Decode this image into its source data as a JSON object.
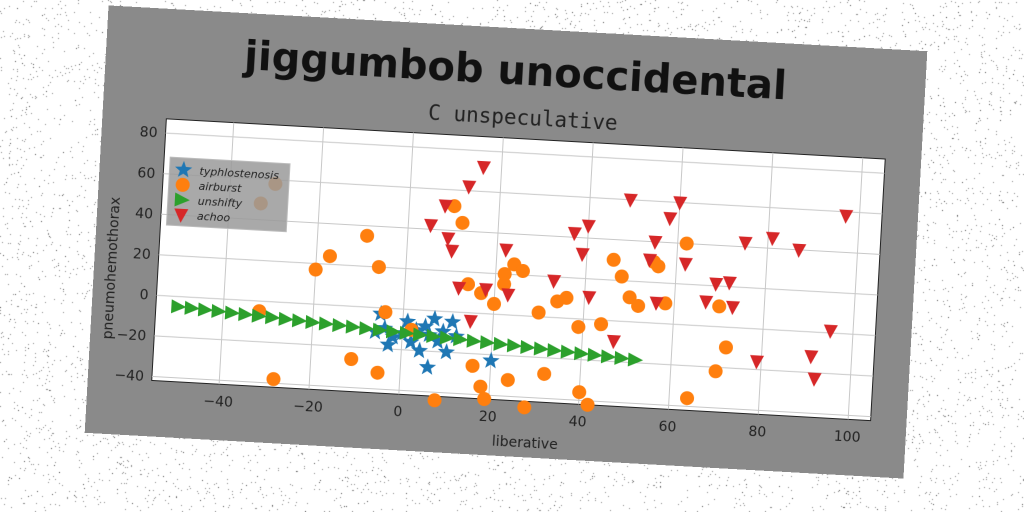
{
  "chart_data": {
    "type": "scatter",
    "title": "jiggumbob unoccidental",
    "subtitle": "C unspeculative",
    "xlabel": "liberative",
    "ylabel": "pneumohemothorax",
    "xlim": [
      -55,
      105
    ],
    "ylim": [
      -42,
      87
    ],
    "xticks": [
      -40,
      -20,
      0,
      20,
      40,
      60,
      80,
      100
    ],
    "yticks": [
      -40,
      -20,
      0,
      20,
      40,
      60,
      80
    ],
    "grid": true,
    "legend_position": "upper-left",
    "series": [
      {
        "name": "typhlostenosis",
        "marker": "star",
        "color": "#1f77b4",
        "points": [
          [
            -5,
            -3
          ],
          [
            -4,
            -10
          ],
          [
            -2,
            -14
          ],
          [
            0,
            -12
          ],
          [
            2,
            -16
          ],
          [
            3,
            -10
          ],
          [
            5,
            -8
          ],
          [
            6,
            -12
          ],
          [
            8,
            -15
          ],
          [
            10,
            -20
          ],
          [
            9,
            -10
          ],
          [
            11,
            -5
          ],
          [
            6,
            -28
          ],
          [
            20,
            -23
          ],
          [
            -3,
            -18
          ],
          [
            1,
            -6
          ],
          [
            4,
            -20
          ],
          [
            7,
            -4
          ],
          [
            -6,
            -12
          ],
          [
            12,
            -12
          ]
        ]
      },
      {
        "name": "airburst",
        "marker": "circle",
        "color": "#ff7f0e",
        "points": [
          [
            -33,
            48
          ],
          [
            -30,
            58
          ],
          [
            -28,
            -38
          ],
          [
            -32,
            -5
          ],
          [
            -20,
            17
          ],
          [
            -17,
            24
          ],
          [
            -9,
            35
          ],
          [
            -6,
            20
          ],
          [
            -11,
            -26
          ],
          [
            -5,
            -32
          ],
          [
            -4,
            -2
          ],
          [
            2,
            -10
          ],
          [
            8,
            -44
          ],
          [
            10,
            52
          ],
          [
            12,
            44
          ],
          [
            14,
            14
          ],
          [
            17,
            10
          ],
          [
            20,
            5
          ],
          [
            22,
            15
          ],
          [
            24,
            25
          ],
          [
            26,
            22
          ],
          [
            16,
            -26
          ],
          [
            18,
            -36
          ],
          [
            19,
            -42
          ],
          [
            24,
            -32
          ],
          [
            28,
            -45
          ],
          [
            32,
            -28
          ],
          [
            34,
            8
          ],
          [
            36,
            10
          ],
          [
            39,
            -4
          ],
          [
            40,
            -36
          ],
          [
            42,
            -42
          ],
          [
            44,
            -2
          ],
          [
            46,
            30
          ],
          [
            50,
            12
          ],
          [
            52,
            8
          ],
          [
            55,
            30
          ],
          [
            56,
            28
          ],
          [
            58,
            10
          ],
          [
            62,
            40
          ],
          [
            64,
            -36
          ],
          [
            70,
            10
          ],
          [
            70,
            -22
          ],
          [
            72,
            -10
          ],
          [
            22,
            20
          ],
          [
            30,
            2
          ],
          [
            48,
            22
          ]
        ]
      },
      {
        "name": "unshifty",
        "marker": "triangle-right",
        "color": "#2ca02c",
        "points": [
          [
            -50,
            -5
          ],
          [
            -47,
            -5.4
          ],
          [
            -44,
            -5.8
          ],
          [
            -41,
            -6.2
          ],
          [
            -38,
            -6.6
          ],
          [
            -35,
            -7
          ],
          [
            -32,
            -7.4
          ],
          [
            -29,
            -7.8
          ],
          [
            -26,
            -8.2
          ],
          [
            -23,
            -8.6
          ],
          [
            -20,
            -9
          ],
          [
            -17,
            -9.4
          ],
          [
            -14,
            -9.8
          ],
          [
            -11,
            -10.2
          ],
          [
            -8,
            -10.6
          ],
          [
            -5,
            -11
          ],
          [
            -2,
            -11.4
          ],
          [
            1,
            -11.8
          ],
          [
            4,
            -12.2
          ],
          [
            7,
            -12.6
          ],
          [
            10,
            -13
          ],
          [
            13,
            -13.4
          ],
          [
            16,
            -13.8
          ],
          [
            19,
            -14.2
          ],
          [
            22,
            -14.6
          ],
          [
            25,
            -15
          ],
          [
            28,
            -15.4
          ],
          [
            31,
            -15.8
          ],
          [
            34,
            -16.2
          ],
          [
            37,
            -16.6
          ],
          [
            40,
            -17
          ],
          [
            43,
            -17.4
          ],
          [
            46,
            -17.8
          ],
          [
            49,
            -18.2
          ],
          [
            52,
            -18.6
          ]
        ]
      },
      {
        "name": "achoo",
        "marker": "triangle-down",
        "color": "#d62728",
        "points": [
          [
            5,
            42
          ],
          [
            8,
            52
          ],
          [
            9,
            36
          ],
          [
            10,
            30
          ],
          [
            12,
            12
          ],
          [
            13,
            62
          ],
          [
            15,
            -4
          ],
          [
            16,
            72
          ],
          [
            18,
            12
          ],
          [
            22,
            32
          ],
          [
            23,
            10
          ],
          [
            33,
            18
          ],
          [
            37,
            42
          ],
          [
            39,
            32
          ],
          [
            40,
            46
          ],
          [
            41,
            11
          ],
          [
            47,
            -10
          ],
          [
            49,
            60
          ],
          [
            54,
            31
          ],
          [
            55,
            40
          ],
          [
            56,
            10
          ],
          [
            58,
            52
          ],
          [
            60,
            60
          ],
          [
            62,
            30
          ],
          [
            67,
            12
          ],
          [
            69,
            21
          ],
          [
            72,
            22
          ],
          [
            73,
            10
          ],
          [
            75,
            42
          ],
          [
            79,
            -16
          ],
          [
            81,
            45
          ],
          [
            87,
            40
          ],
          [
            91,
            -12
          ],
          [
            92,
            -23
          ],
          [
            95,
            1
          ],
          [
            97,
            58
          ]
        ]
      }
    ]
  }
}
